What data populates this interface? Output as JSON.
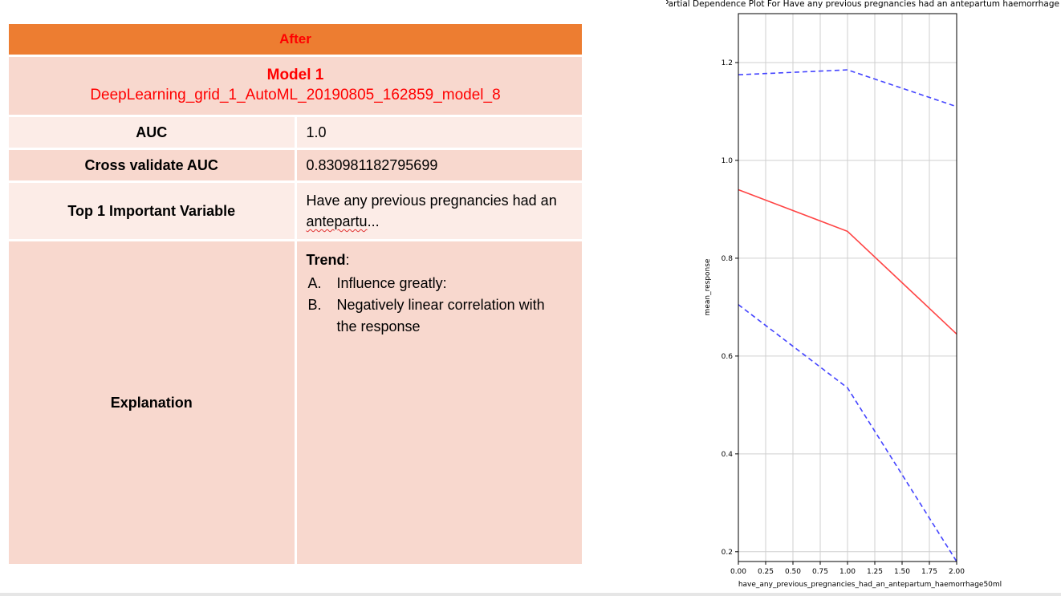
{
  "table": {
    "header": "After",
    "model_title": "Model 1",
    "model_name": "DeepLearning_grid_1_AutoML_20190805_162859_model_8",
    "rows": {
      "auc": {
        "label": "AUC",
        "value": "1.0"
      },
      "cv_auc": {
        "label": "Cross validate AUC",
        "value": "0.830981182795699"
      },
      "top_var": {
        "label": "Top 1 Important Variable",
        "value_line1": "Have any previous pregnancies had an",
        "value_line2": "antepartu",
        "value_suffix": "..."
      },
      "explanation": {
        "label": "Explanation",
        "trend_title": "Trend",
        "trend_colon": ":",
        "items": [
          {
            "marker": "A.",
            "text_line1": "Influence greatly:",
            "text_line2": ""
          },
          {
            "marker": "B.",
            "text_line1": "Negatively linear correlation with",
            "text_line2": "the response"
          }
        ]
      }
    }
  },
  "chart_data": {
    "type": "line",
    "title": "Partial Dependence Plot For Have any previous pregnancies had an antepartum haemorrhage",
    "xlabel": "have_any_previous_pregnancies_had_an_antepartum_haemorrhage50ml",
    "ylabel": "mean_response",
    "xlim": [
      0.0,
      2.0
    ],
    "ylim": [
      0.18,
      1.3
    ],
    "xticks": [
      "0.00",
      "0.25",
      "0.50",
      "0.75",
      "1.00",
      "1.25",
      "1.50",
      "1.75",
      "2.00"
    ],
    "yticks": [
      "0.2",
      "0.4",
      "0.6",
      "0.8",
      "1.0",
      "1.2"
    ],
    "grid": true,
    "x": [
      0,
      1,
      2
    ],
    "series": [
      {
        "values": [
          1.175,
          1.185,
          1.11
        ],
        "color": "#4444ff",
        "style": "dashed"
      },
      {
        "values": [
          0.94,
          0.855,
          0.645
        ],
        "color": "#ff4444",
        "style": "solid"
      },
      {
        "values": [
          0.705,
          0.535,
          0.18
        ],
        "color": "#4444ff",
        "style": "dashed"
      }
    ]
  }
}
